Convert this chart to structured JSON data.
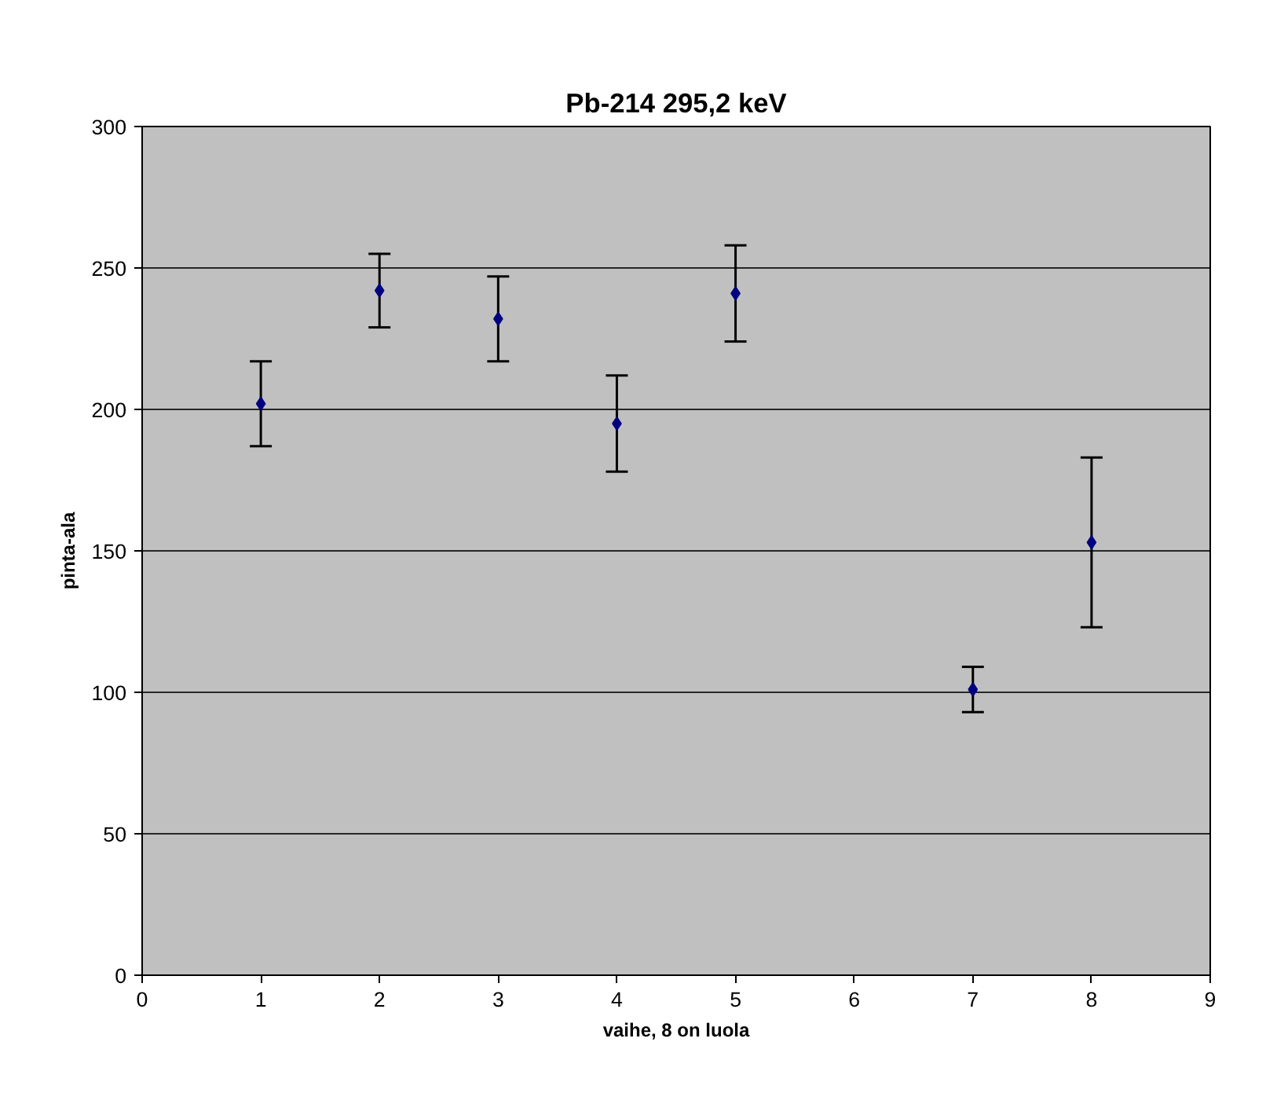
{
  "chart_data": {
    "type": "scatter",
    "title": "Pb-214 295,2 keV",
    "xlabel": "vaihe, 8 on luola",
    "ylabel": "pinta-ala",
    "x": [
      1,
      2,
      3,
      4,
      5,
      7,
      8
    ],
    "values": [
      202,
      242,
      232,
      195,
      241,
      101,
      153
    ],
    "errors": [
      15,
      13,
      15,
      17,
      17,
      8,
      30
    ],
    "color": "#000080",
    "marker": "diamond",
    "xlim": [
      0,
      9
    ],
    "xticks": [
      0,
      1,
      2,
      3,
      4,
      5,
      6,
      7,
      8,
      9
    ],
    "ylim": [
      0,
      300
    ],
    "yticks": [
      0,
      50,
      100,
      150,
      200,
      250,
      300
    ],
    "grid": "y"
  }
}
